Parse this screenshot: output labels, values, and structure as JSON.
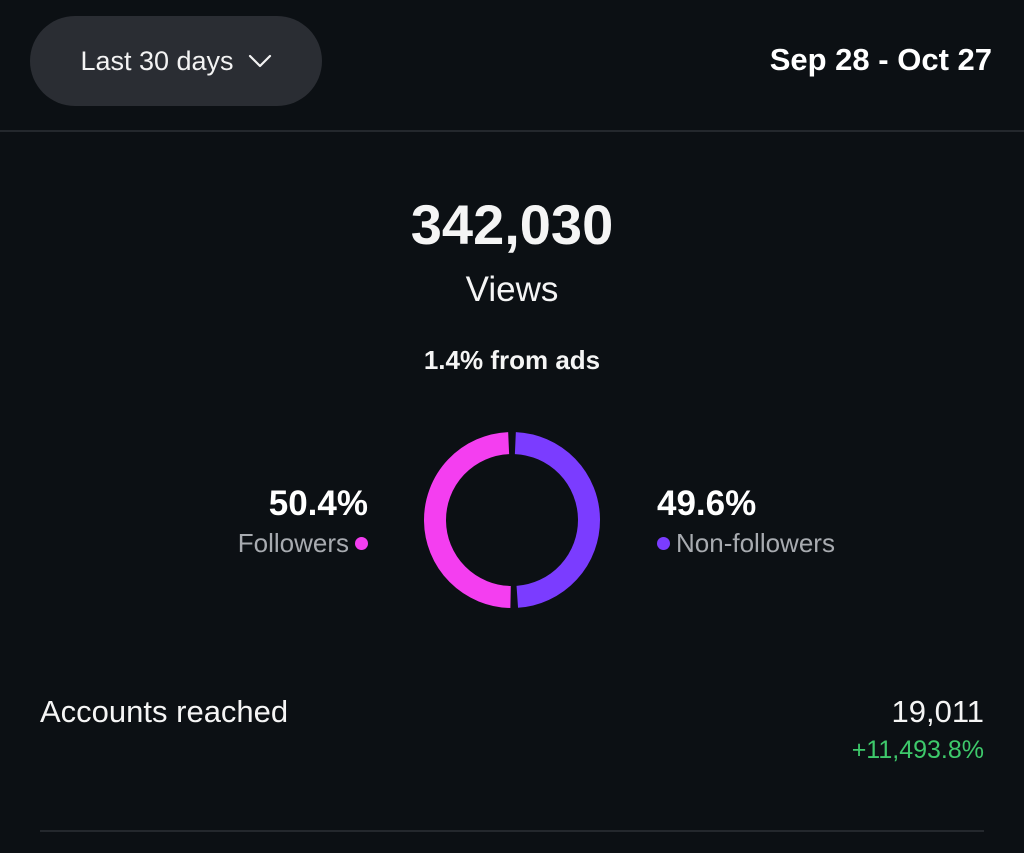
{
  "header": {
    "range_label": "Last 30 days",
    "date_range": "Sep 28 - Oct 27"
  },
  "summary": {
    "total": "342,030",
    "metric": "Views",
    "ads_note": "1.4% from ads"
  },
  "breakdown": {
    "followers": {
      "percent": "50.4%",
      "label": "Followers",
      "value": 50.4,
      "color": "#f43ef0"
    },
    "non_followers": {
      "percent": "49.6%",
      "label": "Non-followers",
      "value": 49.6,
      "color": "#7b3cff"
    }
  },
  "accounts_reached": {
    "label": "Accounts reached",
    "value": "19,011",
    "change": "+11,493.8%"
  }
}
